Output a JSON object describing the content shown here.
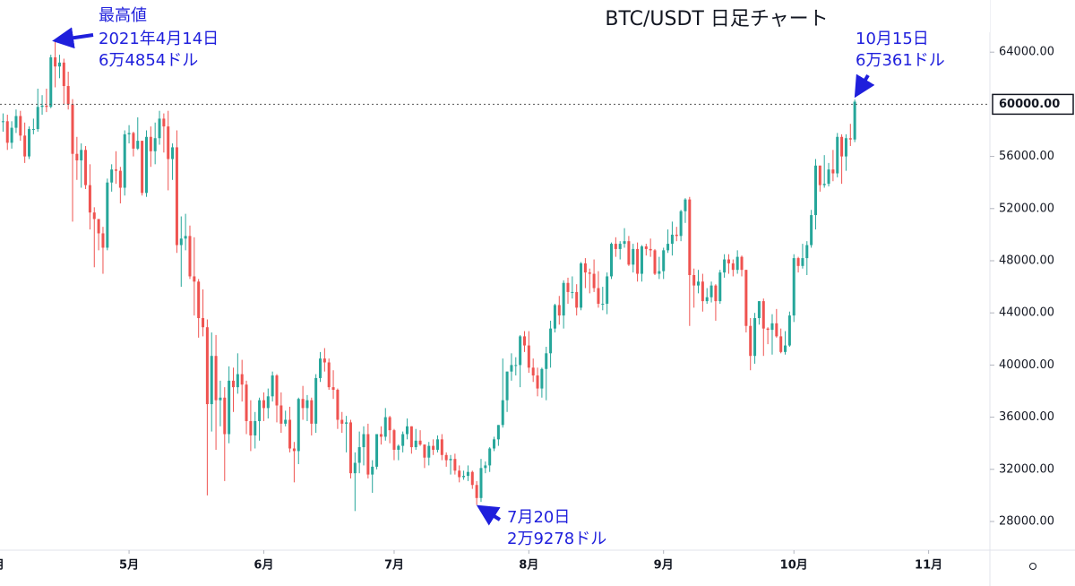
{
  "chart_data": {
    "type": "candlestick",
    "title": "BTC/USDT 日足チャート",
    "up_color": "#26a69a",
    "down_color": "#ef5350",
    "open": [
      58900,
      58700,
      58700,
      57050,
      58200,
      59100,
      57600,
      56000,
      58100,
      58100,
      59800,
      59900,
      59800,
      63600,
      62900,
      63200,
      61400,
      60000,
      56200,
      55700,
      56500,
      53800,
      51700,
      51200,
      50100,
      49000,
      54000,
      55000,
      54900,
      53600,
      57700,
      57800,
      56600,
      57200,
      53200,
      57500,
      56400,
      57400,
      58900,
      58300,
      55800,
      56700,
      49200,
      49700,
      49900,
      46800,
      46400,
      43600,
      42900,
      37000,
      40700,
      37300,
      37500,
      34700,
      38800,
      38300,
      39300,
      38500,
      35700,
      34600,
      35700,
      37300,
      36700,
      37600,
      39200,
      36900,
      35500,
      35800,
      33600,
      33400,
      37400,
      36700,
      37300,
      35500,
      39000,
      40500,
      40200,
      38300,
      38100,
      35800,
      35500,
      35600,
      31700,
      32500,
      33700,
      34700,
      31600,
      32200,
      34700,
      34500,
      36000,
      35000,
      33500,
      33800,
      34700,
      35300,
      33700,
      34200,
      33900,
      32900,
      33800,
      33500,
      34300,
      33100,
      32700,
      32800,
      31900,
      31400,
      31500,
      31800,
      30800,
      29800,
      32100,
      32300,
      33600,
      34300,
      35400,
      37300,
      39500,
      40000,
      40000,
      42200,
      41500,
      39800,
      39200,
      38200,
      39700,
      40900,
      42800,
      44600,
      43800,
      46300,
      45600,
      45600,
      44400,
      47800,
      47100,
      47000,
      45900,
      44700,
      44700,
      46800,
      49300,
      48900,
      49300,
      49500,
      47700,
      48900,
      47000,
      49100,
      48900,
      48800,
      47000,
      47200,
      48800,
      49300,
      50000,
      49900,
      51800,
      52700,
      46900,
      46100,
      46400,
      44900,
      45200,
      46100,
      44900,
      47100,
      48100,
      47800,
      47300,
      48300,
      47300,
      43000,
      40700,
      43600,
      44900,
      42800,
      42700,
      43200,
      42200,
      41000,
      41500,
      43800,
      48200,
      47600,
      48200,
      49200,
      51500,
      55300,
      53800,
      53900,
      55000,
      54700,
      57500,
      56000,
      57400,
      57300
    ],
    "high": [
      59400,
      59300,
      59200,
      58700,
      59600,
      59500,
      58600,
      58300,
      58900,
      61200,
      60700,
      61200,
      63800,
      64854,
      63800,
      63500,
      62500,
      60400,
      57500,
      57000,
      56800,
      55400,
      52100,
      51200,
      50600,
      54300,
      55400,
      56400,
      55200,
      58000,
      58400,
      57900,
      59000,
      57200,
      58000,
      58300,
      58600,
      59500,
      59300,
      59500,
      57000,
      58000,
      51400,
      51600,
      50700,
      49800,
      46600,
      45800,
      43500,
      42500,
      42300,
      38800,
      38300,
      39900,
      39800,
      40900,
      40400,
      38800,
      37300,
      36400,
      37500,
      37900,
      38200,
      39500,
      39300,
      37900,
      36500,
      36800,
      34100,
      37500,
      38400,
      37700,
      37500,
      39300,
      41000,
      41300,
      40500,
      39600,
      38200,
      36400,
      36100,
      35800,
      33300,
      34900,
      35300,
      35500,
      32700,
      34700,
      35300,
      36700,
      36100,
      35100,
      33900,
      34900,
      35900,
      35300,
      35100,
      35000,
      33900,
      34100,
      34300,
      34600,
      34700,
      33300,
      33100,
      33200,
      32300,
      31900,
      32300,
      31900,
      31100,
      32800,
      32600,
      33700,
      34500,
      35400,
      40500,
      39500,
      40900,
      40600,
      42300,
      42600,
      42600,
      40500,
      39800,
      39800,
      41400,
      43400,
      44700,
      45300,
      46500,
      46700,
      46800,
      46200,
      47900,
      48200,
      47400,
      48100,
      47200,
      46000,
      47100,
      49400,
      49800,
      49500,
      50500,
      49900,
      49300,
      49400,
      49200,
      49300,
      49700,
      48900,
      48300,
      49000,
      50400,
      51000,
      50600,
      51900,
      52800,
      52900,
      47400,
      47300,
      47000,
      45900,
      46400,
      46200,
      47300,
      48500,
      48500,
      48100,
      48800,
      48400,
      47300,
      43600,
      44000,
      44900,
      45100,
      42900,
      43900,
      44300,
      42800,
      42600,
      44100,
      48500,
      48300,
      49300,
      49500,
      51900,
      55800,
      55300,
      56100,
      55500,
      56500,
      57800,
      57700,
      57700,
      58500,
      60361
    ],
    "low": [
      58100,
      57900,
      56500,
      56600,
      57800,
      57200,
      55500,
      55800,
      57700,
      57900,
      59200,
      59400,
      59700,
      61300,
      62000,
      60000,
      59600,
      51000,
      54200,
      53600,
      53500,
      50400,
      47500,
      48800,
      47000,
      48800,
      53300,
      53900,
      52400,
      53000,
      57000,
      56000,
      56500,
      53000,
      52900,
      55200,
      55400,
      56900,
      56300,
      53400,
      54200,
      48600,
      46000,
      48800,
      46600,
      43800,
      42100,
      42200,
      30000,
      34900,
      33500,
      35300,
      31100,
      34000,
      36400,
      37800,
      37200,
      34700,
      33400,
      33600,
      34200,
      35700,
      35900,
      37200,
      35600,
      34800,
      35300,
      33300,
      31000,
      32400,
      35800,
      35700,
      34600,
      34800,
      38700,
      39500,
      38100,
      37400,
      35100,
      34800,
      33300,
      31300,
      28800,
      31700,
      32300,
      31300,
      30200,
      32000,
      33900,
      34200,
      34000,
      32700,
      32700,
      33300,
      34300,
      33200,
      33500,
      33800,
      32100,
      32300,
      33100,
      33300,
      32700,
      32200,
      31600,
      31600,
      31000,
      31200,
      31100,
      30500,
      29278,
      29500,
      31700,
      31800,
      33400,
      33800,
      35200,
      36400,
      38800,
      39200,
      38300,
      41000,
      39400,
      38700,
      37600,
      37500,
      37300,
      39800,
      42500,
      43100,
      42800,
      44700,
      45100,
      43800,
      44200,
      45900,
      45500,
      45600,
      44400,
      44200,
      43900,
      46600,
      48300,
      48100,
      49000,
      47600,
      47100,
      46400,
      46400,
      48400,
      48300,
      46900,
      46600,
      46600,
      48600,
      48400,
      49500,
      49500,
      50900,
      43000,
      44400,
      45500,
      44100,
      44700,
      44800,
      43400,
      44700,
      46700,
      47000,
      46800,
      47000,
      46800,
      42500,
      39600,
      40100,
      43100,
      40700,
      41600,
      40800,
      42100,
      40900,
      40800,
      41400,
      43300,
      47100,
      47400,
      46900,
      49000,
      50400,
      53300,
      53600,
      53700,
      54100,
      54400,
      53900,
      54900,
      56800,
      57100
    ],
    "close": [
      58700,
      58700,
      57050,
      58200,
      59100,
      57600,
      56000,
      58100,
      58100,
      59800,
      59900,
      59800,
      63600,
      62900,
      63200,
      61400,
      60000,
      56200,
      55700,
      56500,
      53800,
      51700,
      51200,
      50100,
      49000,
      54000,
      55000,
      54900,
      53600,
      57700,
      57800,
      56600,
      57200,
      53200,
      57500,
      56400,
      57400,
      58900,
      58300,
      55800,
      56700,
      49200,
      49700,
      49900,
      46800,
      46400,
      43600,
      42900,
      37000,
      40700,
      37300,
      37500,
      34700,
      38800,
      38300,
      39300,
      38500,
      35700,
      34600,
      35700,
      37300,
      36700,
      37600,
      39200,
      36900,
      35500,
      35800,
      33600,
      33400,
      37400,
      36700,
      37300,
      35500,
      39000,
      40500,
      40200,
      38300,
      38100,
      35800,
      35500,
      35600,
      31700,
      32500,
      33700,
      34700,
      31600,
      32200,
      34700,
      34500,
      36000,
      35000,
      33500,
      33800,
      34700,
      35300,
      33700,
      34200,
      33900,
      32900,
      33800,
      33500,
      34300,
      33100,
      32700,
      32800,
      31900,
      31400,
      31500,
      31800,
      30800,
      29800,
      32100,
      32300,
      33600,
      34300,
      35400,
      37300,
      39500,
      40000,
      40000,
      42200,
      41500,
      39800,
      39200,
      38200,
      39700,
      40900,
      42800,
      44600,
      43800,
      46300,
      45600,
      45600,
      44400,
      47800,
      47100,
      47000,
      45900,
      44700,
      44700,
      46800,
      49300,
      48900,
      49300,
      49500,
      47700,
      48900,
      47000,
      49100,
      48900,
      48800,
      47000,
      47200,
      48800,
      49300,
      50000,
      49900,
      51800,
      52700,
      46900,
      46100,
      46400,
      44900,
      45200,
      46100,
      44900,
      47100,
      48100,
      47800,
      47300,
      48300,
      47300,
      43000,
      40700,
      43600,
      44900,
      42800,
      42700,
      43200,
      42200,
      41000,
      41500,
      43800,
      48200,
      47600,
      48200,
      49200,
      51500,
      55300,
      53800,
      53900,
      55000,
      54700,
      57500,
      56000,
      57400,
      57300,
      60200
    ],
    "xlim": [
      0.3,
      228.1
    ],
    "xticks": [
      {
        "value": 0,
        "label": "月"
      },
      {
        "value": 30,
        "label": "5月"
      },
      {
        "value": 61,
        "label": "6月"
      },
      {
        "value": 91,
        "label": "7月"
      },
      {
        "value": 122,
        "label": "8月"
      },
      {
        "value": 153,
        "label": "9月"
      },
      {
        "value": 183,
        "label": "10月"
      },
      {
        "value": 214,
        "label": "11月"
      }
    ],
    "ylim": [
      25800,
      68000
    ],
    "yticks": [
      {
        "value": 28000,
        "label": "28000.00"
      },
      {
        "value": 32000,
        "label": "32000.00"
      },
      {
        "value": 36000,
        "label": "36000.00"
      },
      {
        "value": 40000,
        "label": "40000.00"
      },
      {
        "value": 44000,
        "label": "44000.00"
      },
      {
        "value": 48000,
        "label": "48000.00"
      },
      {
        "value": 52000,
        "label": "52000.00"
      },
      {
        "value": 56000,
        "label": "56000.00"
      },
      {
        "value": 64000,
        "label": "64000.00"
      }
    ],
    "price_line": {
      "value": 60000,
      "label": "60000.00"
    },
    "annotations": [
      {
        "lines": [
          "最高値",
          "2021年4月14日",
          "6万4854ドル"
        ]
      },
      {
        "lines": [
          "10月15日",
          "6万361ドル"
        ]
      },
      {
        "lines": [
          "7月20日",
          "2万9278ドル"
        ]
      }
    ]
  }
}
